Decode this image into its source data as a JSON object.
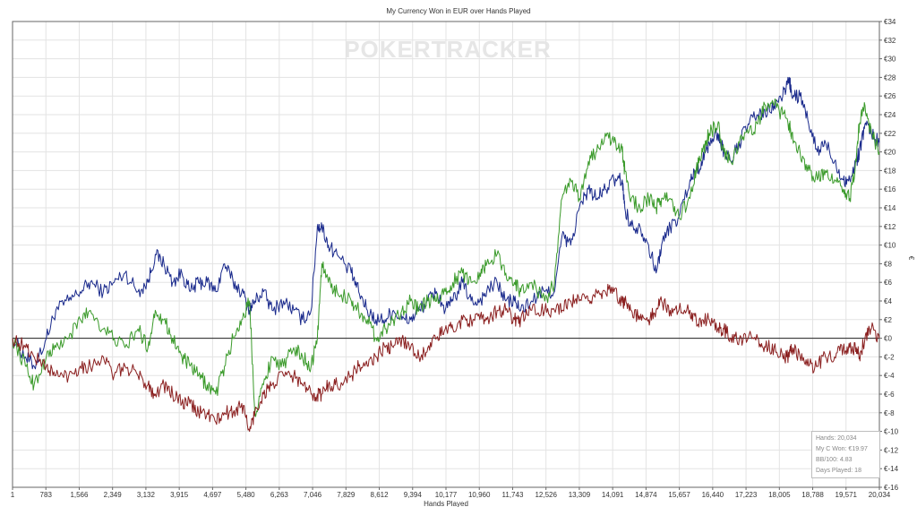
{
  "chart_data": {
    "type": "line",
    "title": "My Currency Won in EUR over Hands Played",
    "xlabel": "Hands Played",
    "ylabel": "€",
    "xlim": [
      1,
      20034
    ],
    "ylim": [
      -16,
      34
    ],
    "x_ticks": [
      "1",
      "783",
      "1,566",
      "2,349",
      "3,132",
      "3,915",
      "4,697",
      "5,480",
      "6,263",
      "7,046",
      "7,829",
      "8,612",
      "9,394",
      "10,177",
      "10,960",
      "11,743",
      "12,526",
      "13,309",
      "14,091",
      "14,874",
      "15,657",
      "16,440",
      "17,223",
      "18,005",
      "18,788",
      "19,571",
      "20,034"
    ],
    "y_ticks": [
      34,
      32,
      30,
      28,
      26,
      24,
      22,
      20,
      18,
      16,
      14,
      12,
      10,
      8,
      6,
      4,
      2,
      0,
      -2,
      -4,
      -6,
      -8,
      -10,
      -12,
      -14,
      -16
    ],
    "y_tick_labels": [
      "€34",
      "€32",
      "€30",
      "€28",
      "€26",
      "€24",
      "€22",
      "€20",
      "€18",
      "€16",
      "€14",
      "€12",
      "€10",
      "€8",
      "€6",
      "€4",
      "€2",
      "€0",
      "€-2",
      "€-4",
      "€-6",
      "€-8",
      "€-10",
      "€-12",
      "€-14",
      "€-16"
    ],
    "grid": true,
    "zero_line": true,
    "watermark": "POKERTRACKER",
    "series": [
      {
        "color": "#1a2a8c",
        "x": [
          1,
          300,
          500,
          783,
          1000,
          1300,
          1566,
          1800,
          2100,
          2349,
          2600,
          2900,
          3132,
          3300,
          3500,
          3700,
          3915,
          4100,
          4300,
          4500,
          4697,
          4900,
          5100,
          5300,
          5480,
          5600,
          5800,
          6000,
          6263,
          6500,
          6700,
          6900,
          7046,
          7150,
          7300,
          7500,
          7829,
          8000,
          8200,
          8400,
          8612,
          8800,
          9000,
          9200,
          9394,
          9600,
          9800,
          10000,
          10177,
          10400,
          10600,
          10800,
          10960,
          11200,
          11400,
          11600,
          11743,
          12000,
          12300,
          12526,
          12700,
          12900,
          13100,
          13309,
          13500,
          13700,
          13900,
          14091,
          14150,
          14300,
          14500,
          14700,
          14874,
          15000,
          15200,
          15400,
          15657,
          15800,
          15950,
          16100,
          16300,
          16440,
          16600,
          16800,
          17000,
          17223,
          17400,
          17600,
          17800,
          17950,
          18005,
          18200,
          18400,
          18600,
          18788,
          19000,
          19200,
          19350,
          19500,
          19571,
          19700,
          19850,
          20034
        ],
        "values": [
          0,
          -2,
          -3,
          0,
          3,
          4,
          5,
          6,
          5,
          6,
          7,
          5,
          6,
          9,
          8,
          6,
          7,
          5,
          6,
          6,
          5,
          8,
          6,
          5,
          3,
          4,
          5,
          3,
          4,
          3,
          2,
          3,
          12,
          12,
          10,
          9,
          7,
          5,
          3,
          2,
          2,
          3,
          2,
          2,
          3,
          4,
          5,
          3,
          4,
          6,
          4,
          4,
          5,
          6,
          4,
          4,
          3,
          4,
          5,
          5,
          11,
          10,
          14,
          16,
          15,
          16,
          17,
          17,
          14,
          12,
          12,
          10,
          7,
          10,
          12,
          13,
          17,
          18,
          19,
          21,
          22,
          20,
          19,
          21,
          23,
          24,
          24,
          25,
          26,
          28,
          26,
          26,
          23,
          20,
          21,
          19,
          17,
          17,
          19,
          20,
          23,
          22,
          21
        ]
      },
      {
        "color": "#3a9a2a",
        "x": [
          1,
          300,
          500,
          783,
          1000,
          1300,
          1566,
          1800,
          2100,
          2349,
          2600,
          2900,
          3132,
          3300,
          3500,
          3700,
          3915,
          4100,
          4300,
          4500,
          4697,
          4900,
          5100,
          5300,
          5480,
          5600,
          5800,
          6000,
          6263,
          6500,
          6700,
          6900,
          7046,
          7150,
          7300,
          7500,
          7829,
          8000,
          8200,
          8400,
          8612,
          8800,
          9000,
          9200,
          9394,
          9600,
          9800,
          10000,
          10177,
          10400,
          10600,
          10800,
          10960,
          11200,
          11400,
          11600,
          11743,
          12000,
          12300,
          12526,
          12700,
          12900,
          13100,
          13309,
          13500,
          13700,
          13900,
          14091,
          14150,
          14300,
          14500,
          14700,
          14874,
          15000,
          15200,
          15400,
          15657,
          15800,
          15950,
          16100,
          16300,
          16440,
          16600,
          16800,
          17000,
          17223,
          17400,
          17600,
          17800,
          17950,
          18005,
          18200,
          18400,
          18600,
          18788,
          19000,
          19200,
          19350,
          19500,
          19571,
          19700,
          19850,
          20034
        ],
        "values": [
          0,
          -3,
          -5,
          -2,
          -1,
          0,
          2,
          3,
          1,
          0,
          -1,
          1,
          -1,
          3,
          2,
          0,
          -2,
          -3,
          -4,
          -5,
          -6,
          -3,
          0,
          2,
          4,
          -8,
          -5,
          -2,
          -3,
          -1,
          -2,
          -3,
          0,
          8,
          6,
          5,
          4,
          3,
          2,
          0,
          1,
          2,
          3,
          4,
          3,
          4,
          4,
          5,
          6,
          7,
          6,
          7,
          8,
          9,
          7,
          6,
          5,
          6,
          4,
          6,
          15,
          17,
          15,
          19,
          20,
          22,
          21,
          20,
          18,
          15,
          14,
          15,
          14,
          15,
          15,
          13,
          15,
          18,
          20,
          22,
          23,
          20,
          19,
          21,
          22,
          23,
          25,
          25,
          24,
          23,
          22,
          20,
          18,
          17,
          18,
          17,
          16,
          15,
          19,
          23,
          25,
          22,
          20
        ]
      },
      {
        "color": "#8b2020",
        "x": [
          1,
          300,
          500,
          783,
          1000,
          1300,
          1566,
          1800,
          2100,
          2349,
          2600,
          2900,
          3132,
          3300,
          3500,
          3700,
          3915,
          4100,
          4300,
          4500,
          4697,
          4900,
          5100,
          5300,
          5480,
          5600,
          5800,
          6000,
          6263,
          6500,
          6700,
          6900,
          7046,
          7150,
          7300,
          7500,
          7829,
          8000,
          8200,
          8400,
          8612,
          8800,
          9000,
          9200,
          9394,
          9600,
          9800,
          10000,
          10177,
          10400,
          10600,
          10800,
          10960,
          11200,
          11400,
          11600,
          11743,
          12000,
          12300,
          12526,
          12700,
          12900,
          13100,
          13309,
          13500,
          13700,
          13900,
          14091,
          14150,
          14300,
          14500,
          14700,
          14874,
          15000,
          15200,
          15400,
          15657,
          15800,
          15950,
          16100,
          16300,
          16440,
          16600,
          16800,
          17000,
          17223,
          17400,
          17600,
          17800,
          17950,
          18005,
          18200,
          18400,
          18600,
          18788,
          19000,
          19200,
          19350,
          19500,
          19571,
          19700,
          19850,
          20034
        ],
        "values": [
          0,
          -1,
          -2,
          -3,
          -4,
          -4,
          -3,
          -3,
          -2,
          -4,
          -3,
          -4,
          -5,
          -6,
          -5,
          -6,
          -7,
          -7,
          -8,
          -8,
          -9,
          -8,
          -8,
          -7,
          -10,
          -8,
          -6,
          -5,
          -4,
          -4,
          -5,
          -6,
          -6,
          -6,
          -5,
          -5,
          -4,
          -3,
          -3,
          -2,
          -1,
          -1,
          0,
          -1,
          -2,
          -1,
          0,
          1,
          1,
          2,
          2,
          2,
          2,
          3,
          3,
          2,
          2,
          3,
          3,
          3,
          3,
          4,
          4,
          4,
          5,
          5,
          5,
          4,
          4,
          3,
          2,
          2,
          3,
          4,
          3,
          3,
          3,
          2,
          2,
          2,
          1,
          1,
          0,
          0,
          0,
          0,
          -1,
          -1,
          -2,
          -2,
          -1,
          -2,
          -3,
          -3,
          -2,
          -2,
          -1,
          -1,
          -1,
          -2,
          0,
          1,
          0
        ]
      }
    ]
  },
  "info_box": {
    "hands": "Hands: 20,034",
    "won": "My C Won: €19.97",
    "bb100": "BB/100: 4.83",
    "days": "Days Played: 18"
  }
}
